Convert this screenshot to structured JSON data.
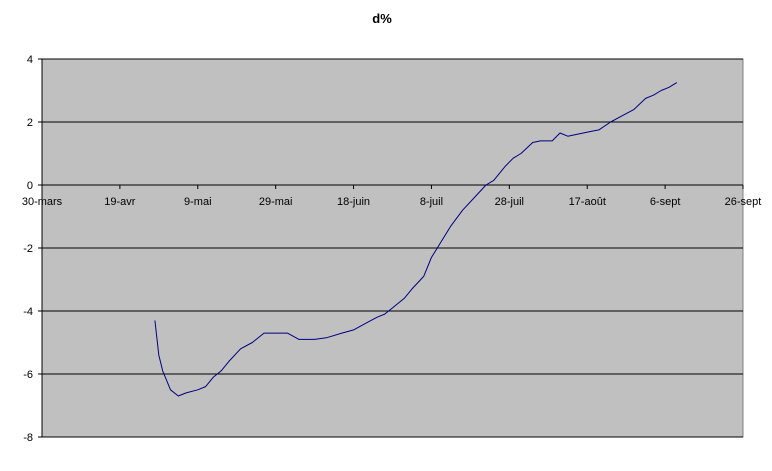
{
  "chart_data": {
    "type": "line",
    "title": "d%",
    "xlabel": "",
    "ylabel": "",
    "x_axis": {
      "min": "2008-03-30",
      "max": "2008-09-26",
      "ticks": [
        "30-mars",
        "19-avr",
        "9-mai",
        "29-mai",
        "18-juin",
        "8-juil",
        "28-juil",
        "17-août",
        "6-sept",
        "26-sept"
      ],
      "tick_dates": [
        "2008-03-30",
        "2008-04-19",
        "2008-05-09",
        "2008-05-29",
        "2008-06-18",
        "2008-07-08",
        "2008-07-28",
        "2008-08-17",
        "2008-09-06",
        "2008-09-26"
      ]
    },
    "y_axis": {
      "min": -8,
      "max": 4,
      "ticks": [
        4,
        2,
        0,
        -2,
        -4,
        -6,
        -8
      ]
    },
    "grid": "horizontal major gridlines",
    "plot_background": "#c0c0c0",
    "line_color": "#000080",
    "series": [
      {
        "x": [
          "2008-04-28",
          "2008-04-29",
          "2008-04-30",
          "2008-05-02",
          "2008-05-04",
          "2008-05-06",
          "2008-05-09",
          "2008-05-11",
          "2008-05-13",
          "2008-05-15",
          "2008-05-17",
          "2008-05-20",
          "2008-05-23",
          "2008-05-26",
          "2008-05-29",
          "2008-06-01",
          "2008-06-04",
          "2008-06-06",
          "2008-06-08",
          "2008-06-11",
          "2008-06-15",
          "2008-06-18",
          "2008-06-21",
          "2008-06-24",
          "2008-06-26",
          "2008-06-28",
          "2008-07-01",
          "2008-07-03",
          "2008-07-06",
          "2008-07-08",
          "2008-07-10",
          "2008-07-13",
          "2008-07-16",
          "2008-07-19",
          "2008-07-22",
          "2008-07-24",
          "2008-07-27",
          "2008-07-29",
          "2008-07-31",
          "2008-08-03",
          "2008-08-05",
          "2008-08-08",
          "2008-08-10",
          "2008-08-12",
          "2008-08-14",
          "2008-08-16",
          "2008-08-18",
          "2008-08-20",
          "2008-08-23",
          "2008-08-26",
          "2008-08-29",
          "2008-09-01",
          "2008-09-03",
          "2008-09-05",
          "2008-09-07",
          "2008-09-09"
        ],
        "y": [
          -4.3,
          -5.4,
          -5.9,
          -6.5,
          -6.7,
          -6.6,
          -6.5,
          -6.4,
          -6.1,
          -5.9,
          -5.6,
          -5.2,
          -5.0,
          -4.7,
          -4.7,
          -4.7,
          -4.9,
          -4.9,
          -4.9,
          -4.85,
          -4.7,
          -4.6,
          -4.4,
          -4.2,
          -4.1,
          -3.9,
          -3.6,
          -3.3,
          -2.9,
          -2.3,
          -1.9,
          -1.3,
          -0.8,
          -0.4,
          0.0,
          0.15,
          0.6,
          0.85,
          1.0,
          1.35,
          1.4,
          1.4,
          1.65,
          1.55,
          1.6,
          1.65,
          1.7,
          1.75,
          2.0,
          2.2,
          2.4,
          2.75,
          2.85,
          3.0,
          3.1,
          3.25
        ]
      }
    ]
  }
}
